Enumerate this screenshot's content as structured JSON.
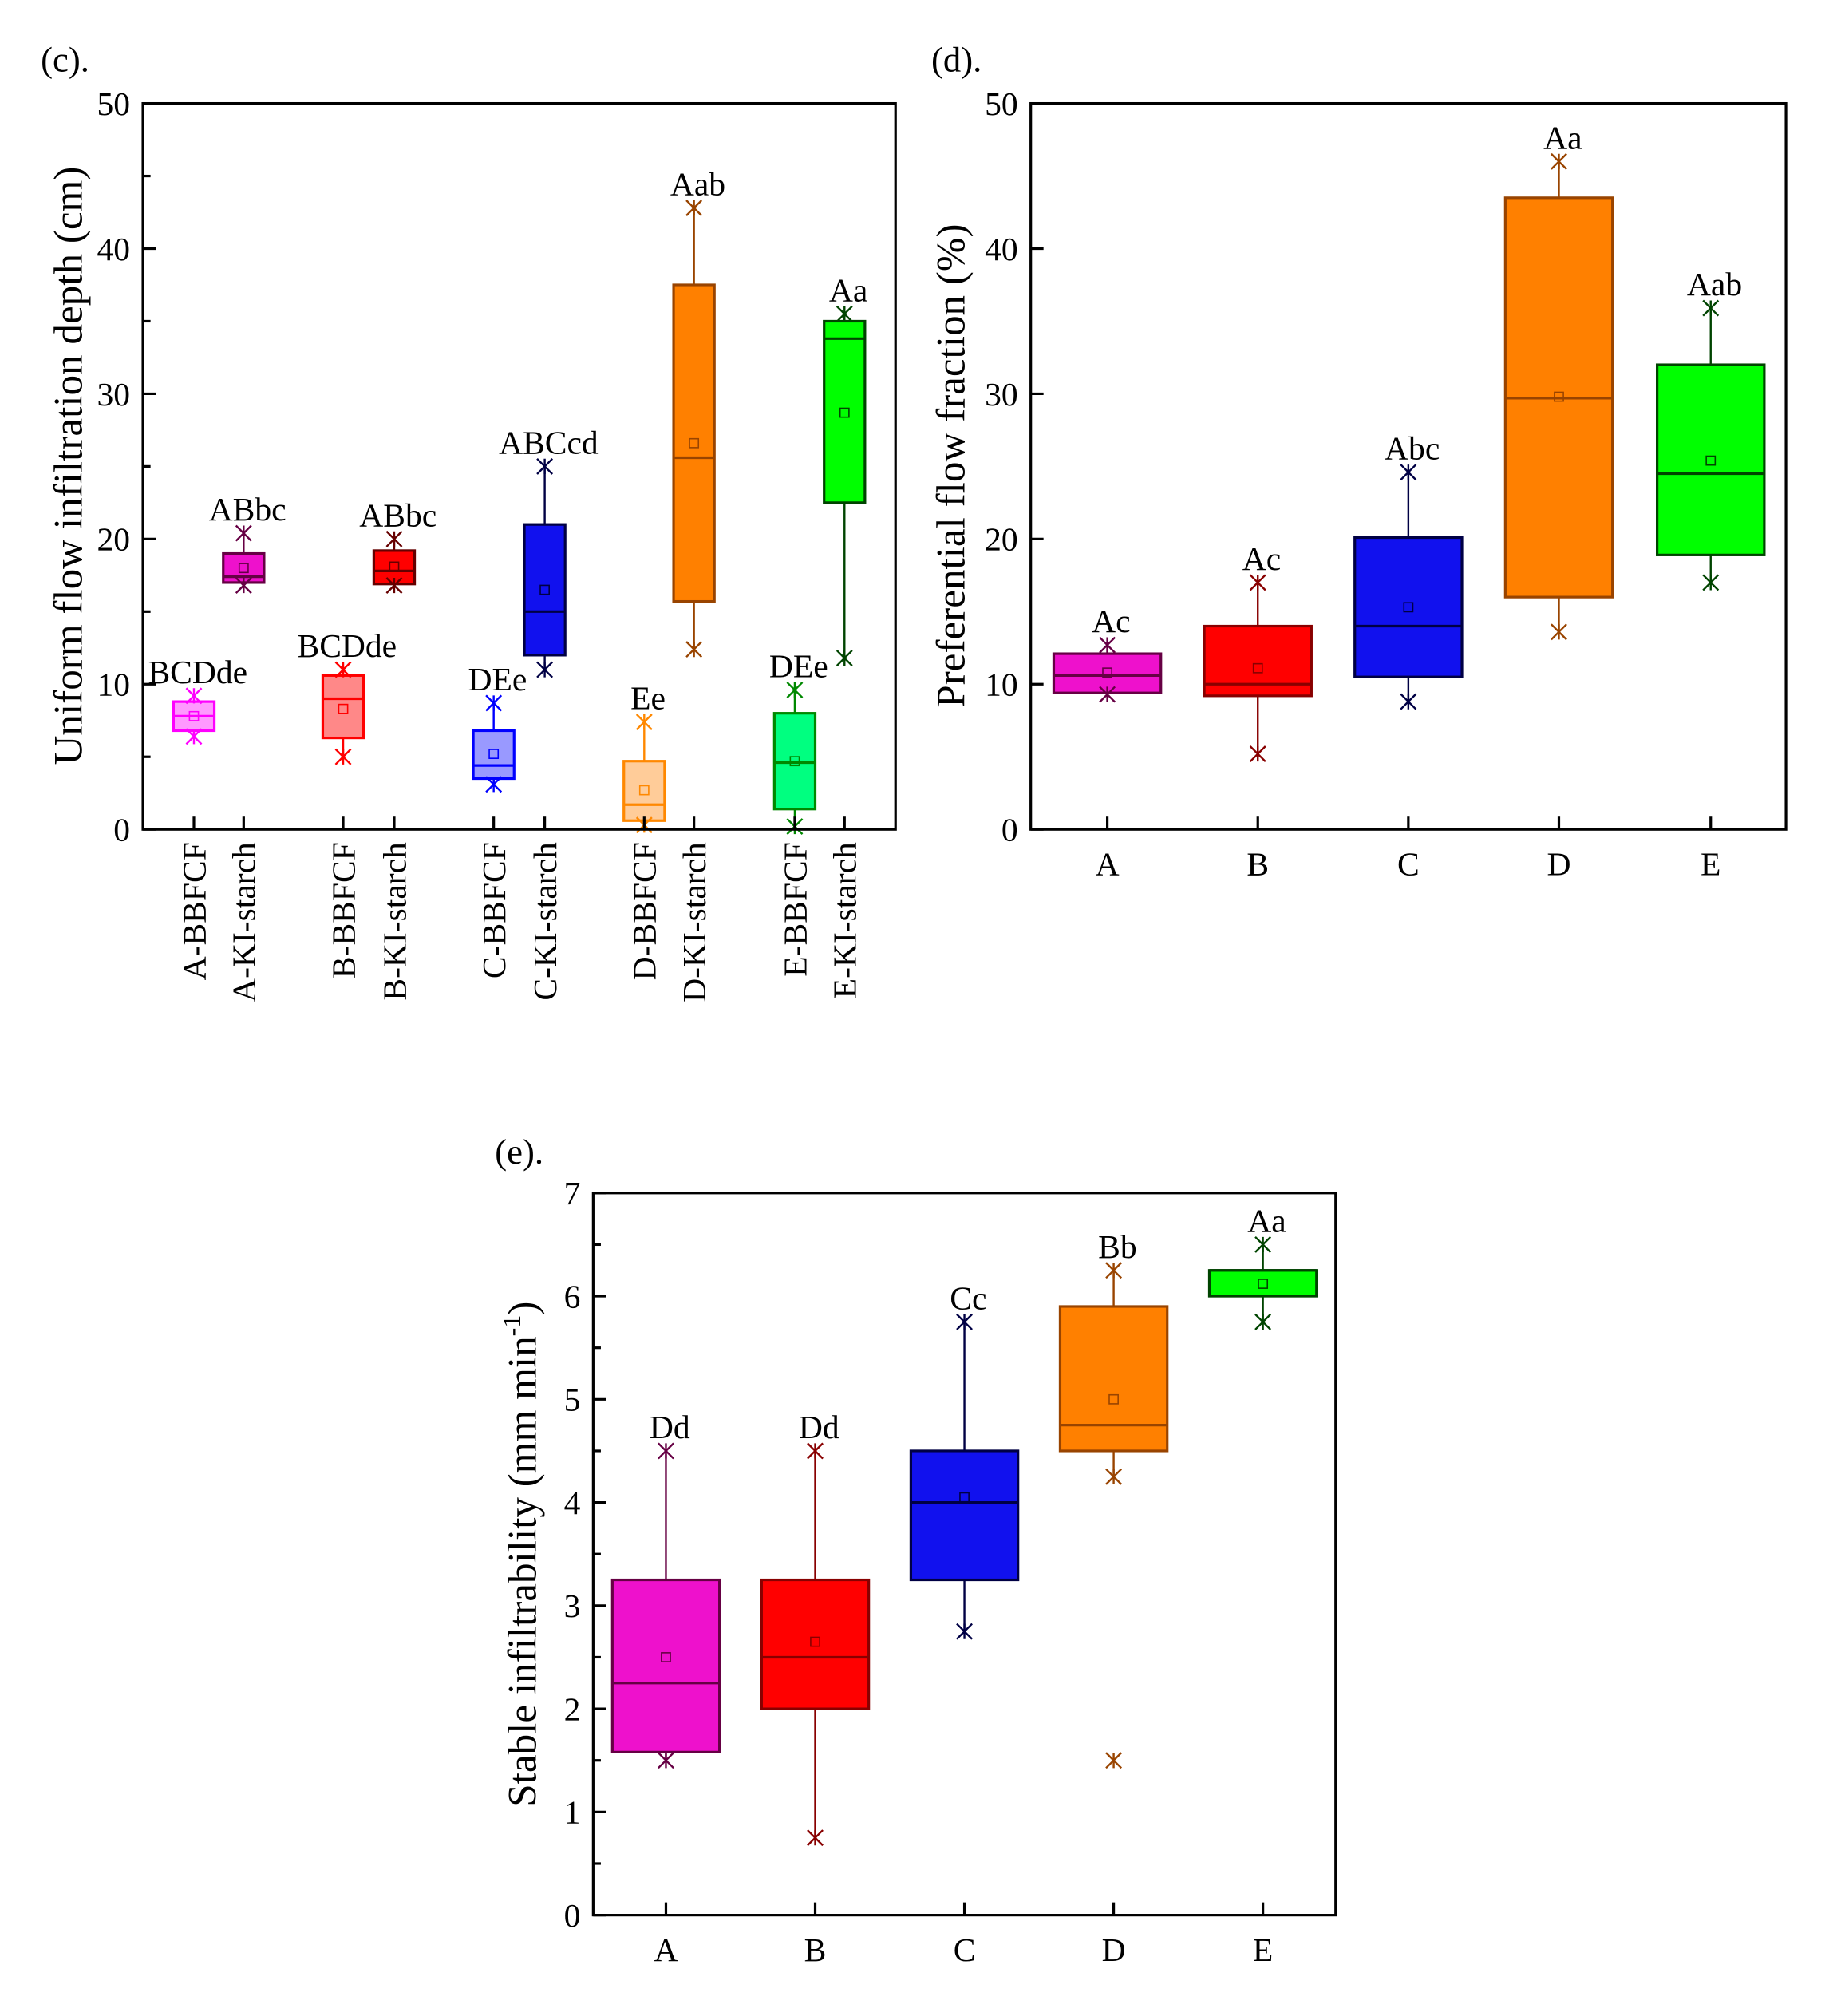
{
  "chart_data": [
    {
      "type": "box",
      "panel_label": "(c).",
      "title": "",
      "xlabel": "",
      "ylabel": "Uniform flow infiltration depth (cm)",
      "ylim": [
        0,
        50
      ],
      "yticks": [
        "0",
        "10",
        "20",
        "30",
        "40",
        "50"
      ],
      "categories": [
        "A-BBFCF",
        "A-KI-starch",
        "B-BBFCF",
        "B-KI-starch",
        "C-BBFCF",
        "C-KI-starch",
        "D-BBFCF",
        "D-KI-starch",
        "E-BBFCF",
        "E-KI-starch"
      ],
      "series": [
        {
          "name": "A-BBFCF",
          "min": 6.4,
          "q1": 6.8,
          "median": 7.8,
          "q3": 8.8,
          "max": 9.2,
          "mean": 7.8,
          "label": "BCDde",
          "fill": "#ff99ff",
          "stroke": "#ff00ff"
        },
        {
          "name": "A-KI-starch",
          "min": 16.8,
          "q1": 17.0,
          "median": 17.4,
          "q3": 19.0,
          "max": 20.4,
          "mean": 18.0,
          "label": "ABbc",
          "fill": "#ee11cc",
          "stroke": "#660044"
        },
        {
          "name": "B-BBFCF",
          "min": 5.0,
          "q1": 6.3,
          "median": 9.0,
          "q3": 10.6,
          "max": 11.0,
          "mean": 8.3,
          "label": "BCDde",
          "fill": "#ff8888",
          "stroke": "#ff0000"
        },
        {
          "name": "B-KI-starch",
          "min": 16.8,
          "q1": 16.9,
          "median": 17.8,
          "q3": 19.2,
          "max": 20.0,
          "mean": 18.1,
          "label": "ABbc",
          "fill": "#ff0000",
          "stroke": "#660000"
        },
        {
          "name": "C-BBFCF",
          "min": 3.1,
          "q1": 3.5,
          "median": 4.4,
          "q3": 6.8,
          "max": 8.7,
          "mean": 5.2,
          "label": "DEe",
          "fill": "#9999ff",
          "stroke": "#0000ff"
        },
        {
          "name": "C-KI-starch",
          "min": 11.0,
          "q1": 12.0,
          "median": 15.0,
          "q3": 21.0,
          "max": 25.0,
          "mean": 16.5,
          "label": "ABCcd",
          "fill": "#1111ee",
          "stroke": "#000044"
        },
        {
          "name": "D-BBFCF",
          "min": 0.3,
          "q1": 0.6,
          "median": 1.7,
          "q3": 4.7,
          "max": 7.4,
          "mean": 2.7,
          "label": "Ee",
          "fill": "#ffcc99",
          "stroke": "#ff8800"
        },
        {
          "name": "D-KI-starch",
          "min": 12.4,
          "q1": 15.7,
          "median": 25.6,
          "q3": 37.5,
          "max": 42.8,
          "mean": 26.6,
          "label": "Aab",
          "fill": "#ff8000",
          "stroke": "#994400"
        },
        {
          "name": "E-BBFCF",
          "min": 0.2,
          "q1": 1.4,
          "median": 4.6,
          "q3": 8.0,
          "max": 9.6,
          "mean": 4.7,
          "label": "DEe",
          "fill": "#00ff80",
          "stroke": "#008800"
        },
        {
          "name": "E-KI-starch",
          "min": 11.8,
          "q1": 22.5,
          "median": 33.8,
          "q3": 35.0,
          "max": 35.5,
          "mean": 28.7,
          "label": "Aa",
          "fill": "#00ff00",
          "stroke": "#004400"
        }
      ]
    },
    {
      "type": "box",
      "panel_label": "(d).",
      "xlabel": "",
      "ylabel": "Preferential flow fraction (%)",
      "ylim": [
        0,
        50
      ],
      "yticks": [
        "0",
        "10",
        "20",
        "30",
        "40",
        "50"
      ],
      "categories": [
        "A",
        "B",
        "C",
        "D",
        "E"
      ],
      "series": [
        {
          "name": "A",
          "min": 9.3,
          "q1": 9.4,
          "median": 10.6,
          "q3": 12.1,
          "max": 12.7,
          "mean": 10.8,
          "label": "Ac",
          "fill": "#ee11cc",
          "stroke": "#660044"
        },
        {
          "name": "B",
          "min": 5.2,
          "q1": 9.2,
          "median": 10.0,
          "q3": 14.0,
          "max": 17.0,
          "mean": 11.1,
          "label": "Ac",
          "fill": "#ff0000",
          "stroke": "#880000"
        },
        {
          "name": "C",
          "min": 8.8,
          "q1": 10.5,
          "median": 14.0,
          "q3": 20.1,
          "max": 24.6,
          "mean": 15.3,
          "label": "Abc",
          "fill": "#1111ee",
          "stroke": "#000044"
        },
        {
          "name": "D",
          "min": 13.6,
          "q1": 16.0,
          "median": 29.7,
          "q3": 43.5,
          "max": 46.0,
          "mean": 29.8,
          "label": "Aa",
          "fill": "#ff8000",
          "stroke": "#994400"
        },
        {
          "name": "E",
          "min": 17.0,
          "q1": 18.9,
          "median": 24.5,
          "q3": 32.0,
          "max": 35.9,
          "mean": 25.4,
          "label": "Aab",
          "fill": "#00ff00",
          "stroke": "#004400"
        }
      ]
    },
    {
      "type": "box",
      "panel_label": "(e).",
      "xlabel": "",
      "ylabel": "Stable infiltrability (mm min",
      "ylabel_sup": "-1",
      "ylabel_end": ")",
      "ylim": [
        0,
        7
      ],
      "yticks": [
        "0",
        "1",
        "2",
        "3",
        "4",
        "5",
        "6",
        "7"
      ],
      "categories": [
        "A",
        "B",
        "C",
        "D",
        "E"
      ],
      "series": [
        {
          "name": "A",
          "min": 1.5,
          "q1": 1.58,
          "median": 2.25,
          "q3": 3.25,
          "max": 4.5,
          "mean": 2.5,
          "label": "Dd",
          "fill": "#ee11cc",
          "stroke": "#660044"
        },
        {
          "name": "B",
          "min": 0.75,
          "q1": 2.0,
          "median": 2.5,
          "q3": 3.25,
          "max": 4.5,
          "mean": 2.65,
          "label": "Dd",
          "fill": "#ff0000",
          "stroke": "#880000"
        },
        {
          "name": "C",
          "min": 2.75,
          "q1": 3.25,
          "median": 4.0,
          "q3": 4.5,
          "max": 5.75,
          "mean": 4.05,
          "label": "Cc",
          "fill": "#1111ee",
          "stroke": "#000044"
        },
        {
          "name": "D",
          "min": 4.25,
          "q1": 4.5,
          "median": 4.75,
          "q3": 5.9,
          "max": 6.25,
          "mean": 5.0,
          "outliers": [
            1.5
          ],
          "label": "Bb",
          "fill": "#ff8000",
          "stroke": "#994400"
        },
        {
          "name": "E",
          "min": 5.75,
          "q1": 6.0,
          "median": 6.25,
          "q3": 6.25,
          "max": 6.5,
          "mean": 6.12,
          "label": "Aa",
          "fill": "#00ff00",
          "stroke": "#004400"
        }
      ]
    }
  ]
}
